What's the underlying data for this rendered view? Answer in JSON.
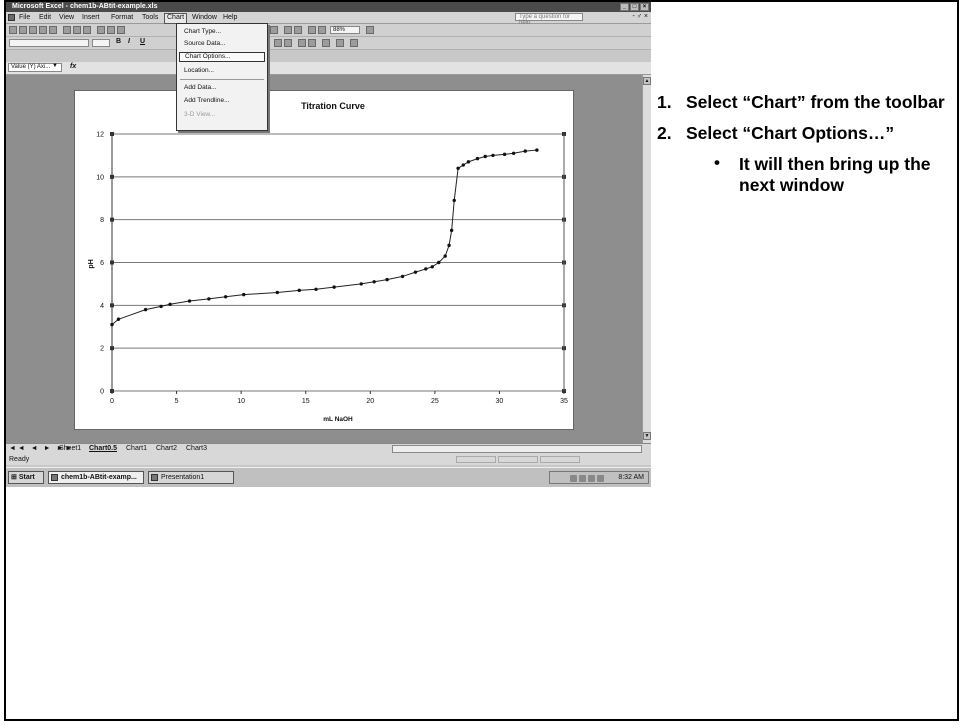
{
  "window": {
    "title": "Microsoft Excel - chem1b-ABtit-example.xls",
    "controls": [
      "_",
      "□",
      "×"
    ]
  },
  "menubar": {
    "items": [
      "File",
      "Edit",
      "View",
      "Insert",
      "Format",
      "Tools",
      "Chart",
      "Window",
      "Help"
    ],
    "help_placeholder": "Type a question for help",
    "mdi_controls": "- ♂ ×"
  },
  "toolbar": {
    "zoom": "88%",
    "font_bold": "B",
    "font_italic": "I",
    "font_underline": "U"
  },
  "formula_bar": {
    "name_box": "Value (Y) Axi...",
    "fx": "fx"
  },
  "chart_menu": {
    "items": [
      {
        "label": "Chart Type...",
        "state": "normal"
      },
      {
        "label": "Source Data...",
        "state": "normal"
      },
      {
        "label": "Chart Options...",
        "state": "highlighted"
      },
      {
        "label": "Location...",
        "state": "normal"
      },
      {
        "label": "Add Data...",
        "state": "normal"
      },
      {
        "label": "Add Trendline...",
        "state": "normal"
      },
      {
        "label": "3-D View...",
        "state": "disabled"
      }
    ]
  },
  "chart_data": {
    "type": "scatter",
    "title": "Titration Curve",
    "xlabel": "mL NaOH",
    "ylabel": "pH",
    "xlim": [
      0,
      35
    ],
    "ylim": [
      0,
      12
    ],
    "xticks": [
      0,
      5,
      10,
      15,
      20,
      25,
      30,
      35
    ],
    "yticks": [
      0,
      2,
      4,
      6,
      8,
      10,
      12
    ],
    "grid": "horizontal",
    "legend": "none",
    "line_color": "#222222",
    "series": [
      {
        "x": [
          0.0,
          0.5,
          2.6,
          3.8,
          4.5,
          6.0,
          7.5,
          8.8,
          10.2,
          12.8,
          14.5,
          15.8,
          17.2,
          19.3,
          20.3,
          21.3,
          22.5,
          23.5,
          24.3,
          24.8,
          25.3,
          25.8,
          26.1,
          26.3,
          26.5,
          26.8,
          27.2,
          27.6,
          28.3,
          28.9,
          29.5,
          30.4,
          31.1,
          32.0,
          32.9
        ],
        "y": [
          3.1,
          3.35,
          3.8,
          3.95,
          4.05,
          4.2,
          4.3,
          4.4,
          4.5,
          4.6,
          4.7,
          4.75,
          4.85,
          5.0,
          5.1,
          5.2,
          5.35,
          5.55,
          5.7,
          5.8,
          6.0,
          6.3,
          6.8,
          7.5,
          8.9,
          10.4,
          10.55,
          10.7,
          10.85,
          10.95,
          11.0,
          11.05,
          11.1,
          11.2,
          11.25
        ]
      }
    ]
  },
  "sheet_tabs": {
    "nav": "◄◄ ◄ ► ►►",
    "tabs": [
      "Sheet1",
      "Chart0.5",
      "Chart1",
      "Chart2",
      "Chart3"
    ],
    "active": "Chart0.5"
  },
  "status": {
    "text": "Ready"
  },
  "taskbar": {
    "start": "Start",
    "buttons": [
      "chem1b-ABtit-examp...",
      "Presentation1"
    ],
    "clock": "8:32 AM"
  },
  "instructions": {
    "step1_num": "1.",
    "step1": "Select “Chart” from the toolbar",
    "step2_num": "2.",
    "step2": "Select “Chart Options…”",
    "bullet": "•",
    "sub": "It will then bring up the next window"
  }
}
